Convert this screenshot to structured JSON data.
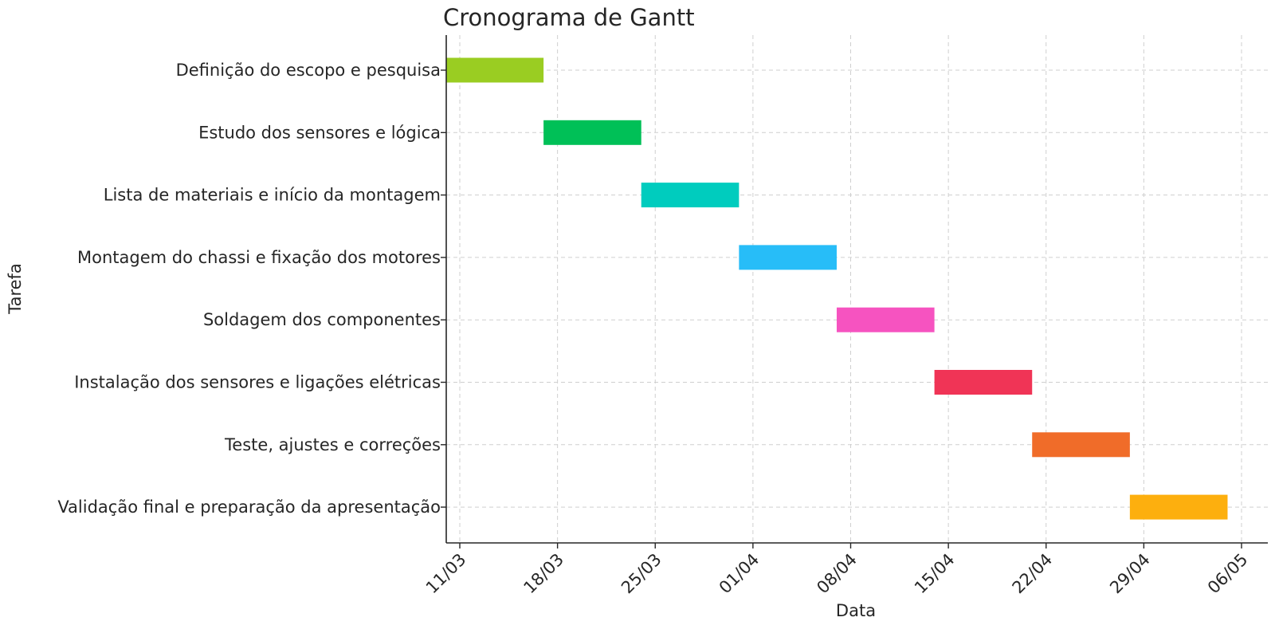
{
  "chart_data": {
    "type": "bar",
    "orientation": "horizontal",
    "title": "Cronograma de Gantt",
    "xlabel": "Data",
    "ylabel": "Tarefa",
    "grid": true,
    "x_axis": {
      "type": "date",
      "range": [
        "2024-03-10",
        "2024-05-06"
      ],
      "ticks": [
        {
          "date": "2024-03-11",
          "label": "11/03"
        },
        {
          "date": "2024-03-18",
          "label": "18/03"
        },
        {
          "date": "2024-03-25",
          "label": "25/03"
        },
        {
          "date": "2024-04-01",
          "label": "01/04"
        },
        {
          "date": "2024-04-08",
          "label": "08/04"
        },
        {
          "date": "2024-04-15",
          "label": "15/04"
        },
        {
          "date": "2024-04-22",
          "label": "22/04"
        },
        {
          "date": "2024-04-29",
          "label": "29/04"
        },
        {
          "date": "2024-05-06",
          "label": "06/05"
        }
      ]
    },
    "tasks": [
      {
        "name": "Definição do escopo e pesquisa",
        "start": "2024-03-10",
        "end": "2024-03-17",
        "color": "#9ACD22"
      },
      {
        "name": "Estudo dos sensores e lógica",
        "start": "2024-03-17",
        "end": "2024-03-24",
        "color": "#00C057"
      },
      {
        "name": "Lista de materiais e início da montagem",
        "start": "2024-03-24",
        "end": "2024-03-31",
        "color": "#00CCBE"
      },
      {
        "name": "Montagem do chassi e fixação dos motores",
        "start": "2024-03-31",
        "end": "2024-04-07",
        "color": "#27BDF8"
      },
      {
        "name": "Soldagem dos componentes",
        "start": "2024-04-07",
        "end": "2024-04-14",
        "color": "#F653C0"
      },
      {
        "name": "Instalação dos sensores e ligações elétricas",
        "start": "2024-04-14",
        "end": "2024-04-21",
        "color": "#F03456"
      },
      {
        "name": "Teste, ajustes e correções",
        "start": "2024-04-21",
        "end": "2024-04-28",
        "color": "#F06C29"
      },
      {
        "name": "Validação final e preparação da apresentação",
        "start": "2024-04-28",
        "end": "2024-05-05",
        "color": "#FDAF0E"
      }
    ]
  }
}
